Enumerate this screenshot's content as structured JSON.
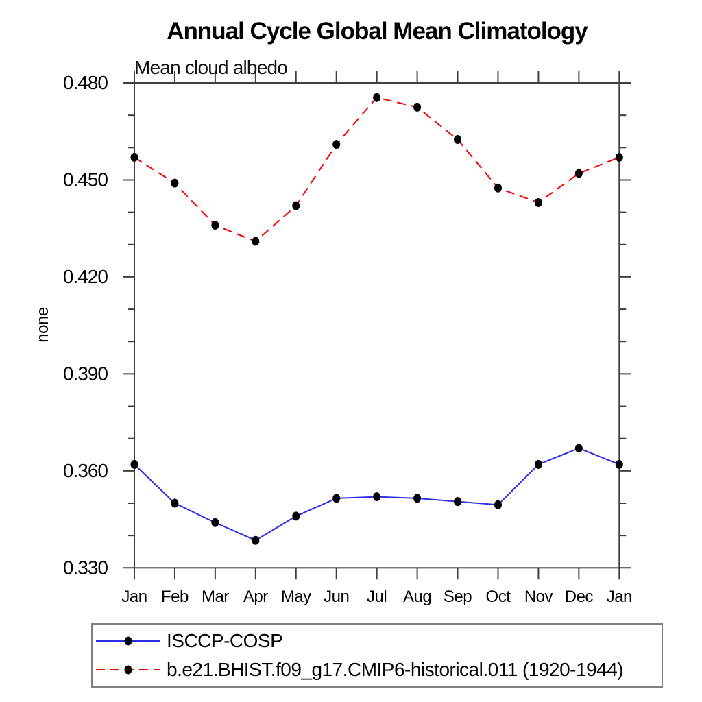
{
  "page": {
    "background": "#ffffff"
  },
  "chart_data": {
    "type": "line",
    "title": "Annual Cycle Global Mean Climatology",
    "subtitle": "Mean cloud albedo",
    "ylabel": "none",
    "xlabel": "",
    "x_categories": [
      "Jan",
      "Feb",
      "Mar",
      "Apr",
      "May",
      "Jun",
      "Jul",
      "Aug",
      "Sep",
      "Oct",
      "Nov",
      "Dec",
      "Jan"
    ],
    "ylim": [
      0.33,
      0.48
    ],
    "y_major_tick_labels": [
      "0.330",
      "0.360",
      "0.390",
      "0.420",
      "0.450",
      "0.480"
    ],
    "y_major_step": 0.03,
    "y_minor_step": 0.01,
    "grid": false,
    "frame": "box-with-outward-ticks",
    "legend_position": "bottom-left",
    "axis_color": "#3f3f3f",
    "series": [
      {
        "name": "ISCCP-COSP",
        "color": "#2d2de6",
        "line_style": "solid",
        "marker": "filled-circle",
        "marker_color": "#000000",
        "values": [
          0.362,
          0.35,
          0.344,
          0.3385,
          0.346,
          0.3515,
          0.352,
          0.3515,
          0.3505,
          0.3495,
          0.362,
          0.367,
          0.362
        ]
      },
      {
        "name": "b.e21.BHIST.f09_g17.CMIP6-historical.011 (1920-1944)",
        "color": "#f50000",
        "line_style": "dashed",
        "marker": "filled-circle",
        "marker_color": "#000000",
        "values": [
          0.457,
          0.449,
          0.436,
          0.431,
          0.442,
          0.461,
          0.4755,
          0.4725,
          0.4625,
          0.4475,
          0.443,
          0.452,
          0.457
        ]
      }
    ]
  }
}
